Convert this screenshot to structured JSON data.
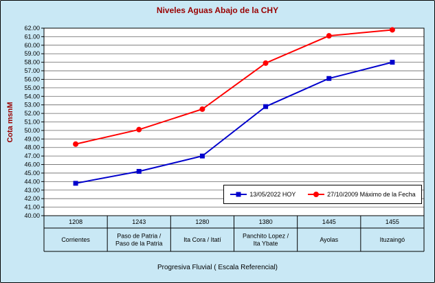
{
  "window": {
    "bg": "#C9E8F5",
    "border_color": "#000000",
    "plot_bg": "#FFFFFF",
    "gridline_color": "#666666"
  },
  "chart_data": {
    "type": "line",
    "title": "Niveles Aguas Abajo de la CHY",
    "title_color": "#990000",
    "ylabel": "Cota msnM",
    "xlabel": "Progresiva Fluvial ( Escala Referencial)",
    "ylim": [
      40,
      62
    ],
    "ytick_step": 1,
    "ytick_decimals": 2,
    "grid": true,
    "legend_position": "inside-bottom-right",
    "categories_km": [
      "1208",
      "1243",
      "1280",
      "1380",
      "1445",
      "1455"
    ],
    "categories_names": [
      [
        "Corrientes"
      ],
      [
        "Paso de Patria /",
        "Paso de la Patria"
      ],
      [
        "Ita Cora / Itatí"
      ],
      [
        "Panchito Lopez /",
        "Ita Ybate"
      ],
      [
        "Ayolas"
      ],
      [
        "Ituzaingó"
      ]
    ],
    "series": [
      {
        "name": "13/05/2022 HOY",
        "color": "#0000CC",
        "marker": "square",
        "values": [
          43.8,
          45.2,
          47.0,
          52.8,
          56.1,
          58.0
        ]
      },
      {
        "name": "27/10/2009 Máximo de la Fecha",
        "color": "#FF0000",
        "marker": "circle",
        "values": [
          48.4,
          50.1,
          52.5,
          57.9,
          61.1,
          61.8
        ]
      }
    ]
  }
}
